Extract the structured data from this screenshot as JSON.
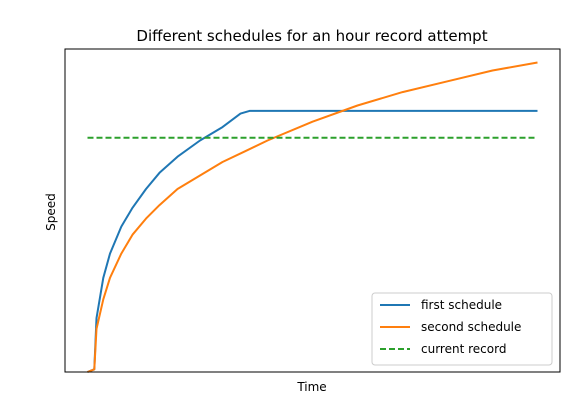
{
  "chart_data": {
    "type": "line",
    "title": "Different schedules for an hour record attempt",
    "xlabel": "Time",
    "ylabel": "Speed",
    "xticks": "none",
    "yticks": "none",
    "grid": false,
    "legend_position": "bottom-right",
    "xlim": [
      -0.05,
      1.05
    ],
    "ylim": [
      0,
      1.2
    ],
    "series": [
      {
        "name": "first schedule",
        "color": "#1f77b4",
        "style": "solid",
        "points": [
          [
            0.0,
            0.0
          ],
          [
            0.015,
            0.01
          ],
          [
            0.02,
            0.2
          ],
          [
            0.035,
            0.35
          ],
          [
            0.05,
            0.44
          ],
          [
            0.075,
            0.54
          ],
          [
            0.1,
            0.61
          ],
          [
            0.13,
            0.68
          ],
          [
            0.16,
            0.74
          ],
          [
            0.2,
            0.8
          ],
          [
            0.25,
            0.86
          ],
          [
            0.3,
            0.91
          ],
          [
            0.34,
            0.96
          ],
          [
            0.36,
            0.97
          ],
          [
            1.0,
            0.97
          ]
        ]
      },
      {
        "name": "second schedule",
        "color": "#ff7f0e",
        "style": "solid",
        "points": [
          [
            0.0,
            0.0
          ],
          [
            0.015,
            0.01
          ],
          [
            0.02,
            0.16
          ],
          [
            0.035,
            0.27
          ],
          [
            0.05,
            0.35
          ],
          [
            0.075,
            0.44
          ],
          [
            0.1,
            0.51
          ],
          [
            0.13,
            0.57
          ],
          [
            0.16,
            0.62
          ],
          [
            0.2,
            0.68
          ],
          [
            0.25,
            0.73
          ],
          [
            0.3,
            0.78
          ],
          [
            0.35,
            0.82
          ],
          [
            0.4,
            0.86
          ],
          [
            0.5,
            0.93
          ],
          [
            0.6,
            0.99
          ],
          [
            0.7,
            1.04
          ],
          [
            0.8,
            1.08
          ],
          [
            0.9,
            1.12
          ],
          [
            1.0,
            1.15
          ]
        ]
      },
      {
        "name": "current record",
        "color": "#2ca02c",
        "style": "dashed",
        "points": [
          [
            0.0,
            0.87
          ],
          [
            1.0,
            0.87
          ]
        ]
      }
    ]
  }
}
